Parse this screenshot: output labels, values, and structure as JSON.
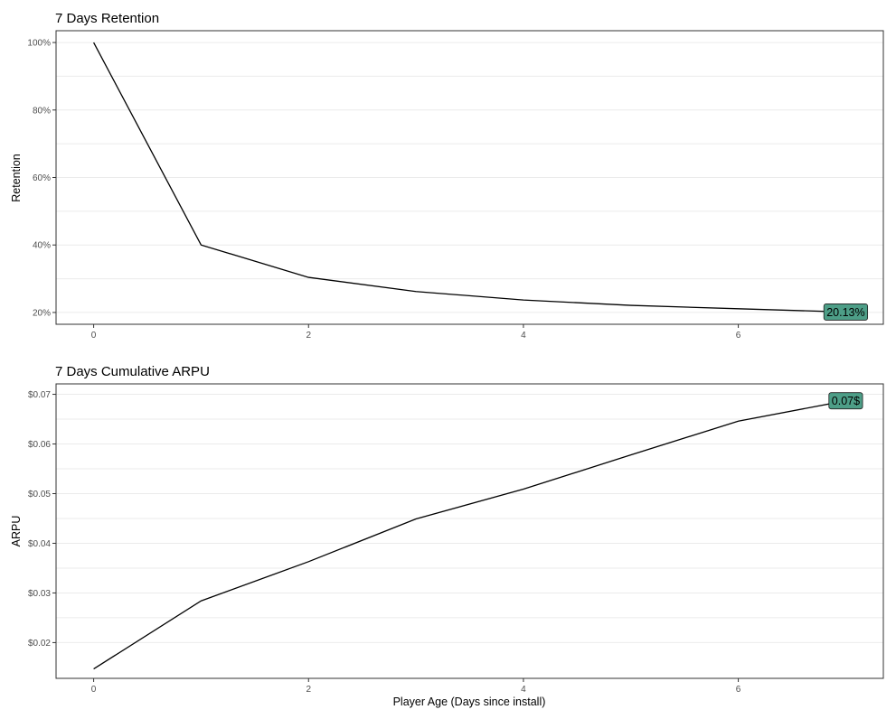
{
  "chart_data": [
    {
      "type": "line",
      "title": "7 Days Retention",
      "xlabel": "",
      "ylabel": "Retention",
      "x": [
        0,
        1,
        2,
        3,
        4,
        5,
        6,
        7
      ],
      "values": [
        100,
        40,
        30.4,
        26.2,
        23.7,
        22.1,
        21.1,
        20.13
      ],
      "xlim": [
        -0.35,
        7.35
      ],
      "ylim": [
        16.5,
        103.5
      ],
      "x_ticks": [
        0,
        2,
        4,
        6
      ],
      "x_tick_labels": [
        "0",
        "2",
        "4",
        "6"
      ],
      "y_ticks": [
        20,
        40,
        60,
        80,
        100
      ],
      "y_tick_labels": [
        "20%",
        "40%",
        "60%",
        "80%",
        "100%"
      ],
      "grid": true,
      "end_label": "20.13%",
      "end_label_fill": "#4d9e87",
      "line_color": "#000000"
    },
    {
      "type": "line",
      "title": "7 Days Cumulative ARPU",
      "xlabel": "Player Age (Days since install)",
      "ylabel": "ARPU",
      "x": [
        0,
        1,
        2,
        3,
        4,
        5,
        6,
        7
      ],
      "values": [
        0.0147,
        0.0284,
        0.0363,
        0.0449,
        0.0509,
        0.0578,
        0.0646,
        0.0687
      ],
      "xlim": [
        -0.35,
        7.35
      ],
      "ylim": [
        0.0128,
        0.0721
      ],
      "x_ticks": [
        0,
        2,
        4,
        6
      ],
      "x_tick_labels": [
        "0",
        "2",
        "4",
        "6"
      ],
      "y_ticks": [
        0.02,
        0.03,
        0.04,
        0.05,
        0.06,
        0.07
      ],
      "y_tick_labels": [
        "$0.02",
        "$0.03",
        "$0.04",
        "$0.05",
        "$0.06",
        "$0.07"
      ],
      "grid": true,
      "end_label": "0.07$",
      "end_label_fill": "#4d9e87",
      "line_color": "#000000"
    }
  ]
}
